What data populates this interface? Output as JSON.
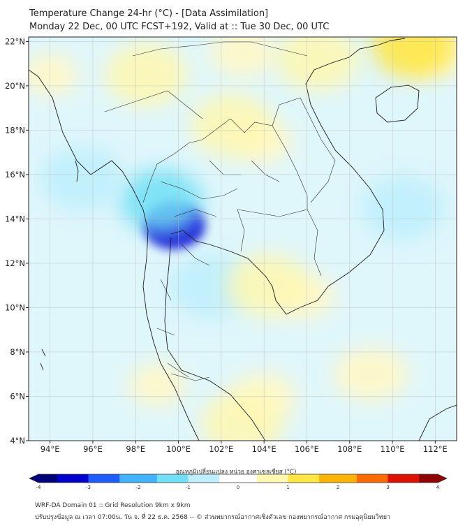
{
  "header": {
    "title_line1": "Temperature Change 24-hr (°C) - [Data Assimilation]",
    "title_line2": "Monday 22 Dec, 00 UTC FCST+192, Valid at :: Tue 30 Dec, 00 UTC"
  },
  "map": {
    "lat_ticks": [
      "22°N",
      "20°N",
      "18°N",
      "16°N",
      "14°N",
      "12°N",
      "10°N",
      "8°N",
      "6°N",
      "4°N"
    ],
    "lon_ticks": [
      "94°E",
      "96°E",
      "98°E",
      "100°E",
      "102°E",
      "104°E",
      "106°E",
      "108°E",
      "110°E",
      "112°E"
    ],
    "lon_range": [
      93,
      113
    ],
    "lat_range": [
      4,
      22.2
    ],
    "field_hotspots": [
      {
        "name": "bangkok-cooling",
        "lon": 99.8,
        "lat": 13.7,
        "value": -3.2
      },
      {
        "name": "central-thailand-cool",
        "lon": 99.2,
        "lat": 14.8,
        "value": -1.6
      },
      {
        "name": "andaman-cool",
        "lon": 95.5,
        "lat": 15.8,
        "value": -1.0
      },
      {
        "name": "gulf-cool",
        "lon": 101.5,
        "lat": 11.0,
        "value": -1.0
      },
      {
        "name": "south-china-sea-cool",
        "lon": 110.5,
        "lat": 14.5,
        "value": -0.9
      },
      {
        "name": "north-laos-warm",
        "lon": 102.5,
        "lat": 18.2,
        "value": 0.9
      },
      {
        "name": "north-vietnam-warm",
        "lon": 106.5,
        "lat": 21.2,
        "value": 0.9
      },
      {
        "name": "gulf-tonkin-warm",
        "lon": 111.0,
        "lat": 21.8,
        "value": 1.0
      },
      {
        "name": "cambodia-warm",
        "lon": 104.2,
        "lat": 11.0,
        "value": 0.8
      },
      {
        "name": "malaysia-warm",
        "lon": 103.0,
        "lat": 4.8,
        "value": 0.7
      },
      {
        "name": "myanmar-warm",
        "lon": 98.5,
        "lat": 20.5,
        "value": 0.8
      }
    ]
  },
  "colorbar": {
    "label": "อุณหภูมิเปลี่ยนแปลง หน่วย องศาเซลเซียส (°C)",
    "ticks": [
      "-4",
      "-3",
      "-2",
      "-1",
      "0",
      "1",
      "2",
      "3",
      "4"
    ],
    "min": -4,
    "max": 4,
    "colors": [
      "#00007a",
      "#0000d0",
      "#1a5cff",
      "#3fb3ff",
      "#6fe0f5",
      "#bdeffc",
      "#ffffff",
      "#fff8b0",
      "#ffe640",
      "#ffb400",
      "#ff6a00",
      "#e01000",
      "#900000"
    ]
  },
  "footer": {
    "line1": "WRF-DA Domain 01 :: Grid Resolution 9km x 9km",
    "line2": "ปรับปรุงข้อมูล ณ เวลา 07:00น. วัน จ. ที่ 22 ธ.ค. 2568 -- © ส่วนพยากรณ์อากาศเชิงตัวเลข กองพยากรณ์อากาศ กรมอุตุนิยมวิทยา"
  }
}
